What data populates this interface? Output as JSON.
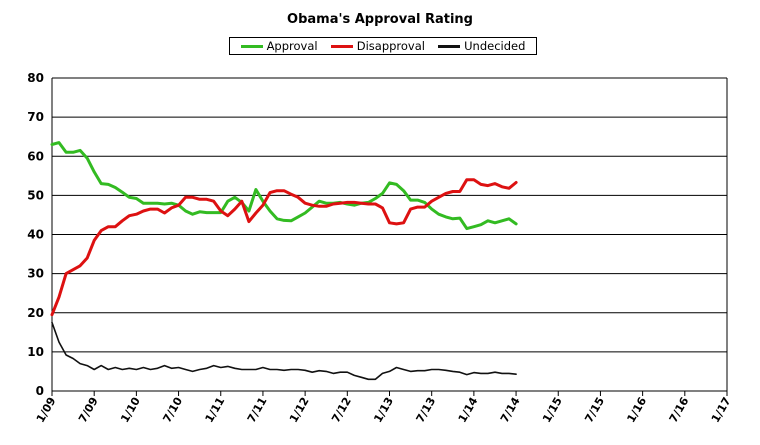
{
  "chart_data": {
    "type": "line",
    "title": "Obama's Approval Rating",
    "xlabel": "",
    "ylabel": "",
    "ylim": [
      0,
      80
    ],
    "yticks": [
      0,
      10,
      20,
      30,
      40,
      50,
      60,
      70,
      80
    ],
    "x_tick_labels": [
      "1/09",
      "7/09",
      "1/10",
      "7/10",
      "1/11",
      "7/11",
      "1/12",
      "7/12",
      "1/13",
      "7/13",
      "1/14",
      "7/14",
      "1/15",
      "7/15",
      "1/16",
      "7/16",
      "1/17"
    ],
    "x_unit": "months since 1/09",
    "xlim": [
      0,
      96
    ],
    "grid": "horizontal",
    "legend_position": "top-center",
    "series": [
      {
        "name": "Approval",
        "color": "#33bb22",
        "points": [
          [
            0,
            63
          ],
          [
            1,
            63.5
          ],
          [
            2,
            61
          ],
          [
            3,
            61
          ],
          [
            4,
            61.5
          ],
          [
            5,
            59.5
          ],
          [
            6,
            56
          ],
          [
            7,
            53
          ],
          [
            8,
            52.8
          ],
          [
            9,
            52
          ],
          [
            10,
            50.8
          ],
          [
            11,
            49.5
          ],
          [
            12,
            49.2
          ],
          [
            13,
            48
          ],
          [
            14,
            48
          ],
          [
            15,
            48
          ],
          [
            16,
            47.8
          ],
          [
            17,
            48
          ],
          [
            18,
            47.5
          ],
          [
            19,
            46
          ],
          [
            20,
            45.2
          ],
          [
            21,
            45.8
          ],
          [
            22,
            45.6
          ],
          [
            23,
            45.6
          ],
          [
            24,
            45.6
          ],
          [
            25,
            48.5
          ],
          [
            26,
            49.5
          ],
          [
            27,
            48.2
          ],
          [
            28,
            46
          ],
          [
            29,
            51.5
          ],
          [
            30,
            48.5
          ],
          [
            31,
            46
          ],
          [
            32,
            44
          ],
          [
            33,
            43.6
          ],
          [
            34,
            43.5
          ],
          [
            35,
            44.5
          ],
          [
            36,
            45.5
          ],
          [
            37,
            47
          ],
          [
            38,
            48.5
          ],
          [
            39,
            48
          ],
          [
            40,
            48
          ],
          [
            41,
            48.2
          ],
          [
            42,
            47.8
          ],
          [
            43,
            47.5
          ],
          [
            44,
            48
          ],
          [
            45,
            48.2
          ],
          [
            46,
            49.2
          ],
          [
            47,
            50.5
          ],
          [
            48,
            53.2
          ],
          [
            49,
            52.8
          ],
          [
            50,
            51.2
          ],
          [
            51,
            48.8
          ],
          [
            52,
            48.8
          ],
          [
            53,
            48.2
          ],
          [
            54,
            46.5
          ],
          [
            55,
            45.2
          ],
          [
            56,
            44.5
          ],
          [
            57,
            44
          ],
          [
            58,
            44.2
          ],
          [
            59,
            41.5
          ],
          [
            60,
            42
          ],
          [
            61,
            42.5
          ],
          [
            62,
            43.5
          ],
          [
            63,
            43
          ],
          [
            64,
            43.5
          ],
          [
            65,
            44
          ],
          [
            66,
            42.7
          ]
        ]
      },
      {
        "name": "Disapproval",
        "color": "#dd1111",
        "points": [
          [
            0,
            19.5
          ],
          [
            1,
            24
          ],
          [
            2,
            30
          ],
          [
            3,
            31
          ],
          [
            4,
            32
          ],
          [
            5,
            34
          ],
          [
            6,
            38.5
          ],
          [
            7,
            41
          ],
          [
            8,
            42
          ],
          [
            9,
            42
          ],
          [
            10,
            43.5
          ],
          [
            11,
            44.8
          ],
          [
            12,
            45.2
          ],
          [
            13,
            46
          ],
          [
            14,
            46.5
          ],
          [
            15,
            46.5
          ],
          [
            16,
            45.5
          ],
          [
            17,
            46.8
          ],
          [
            18,
            47.5
          ],
          [
            19,
            49.5
          ],
          [
            20,
            49.5
          ],
          [
            21,
            49
          ],
          [
            22,
            49
          ],
          [
            23,
            48.5
          ],
          [
            24,
            46
          ],
          [
            25,
            44.8
          ],
          [
            26,
            46.5
          ],
          [
            27,
            48.5
          ],
          [
            28,
            43.3
          ],
          [
            29,
            45.5
          ],
          [
            30,
            47.5
          ],
          [
            31,
            50.7
          ],
          [
            32,
            51.2
          ],
          [
            33,
            51.2
          ],
          [
            34,
            50.3
          ],
          [
            35,
            49.5
          ],
          [
            36,
            48
          ],
          [
            37,
            47.5
          ],
          [
            38,
            47.2
          ],
          [
            39,
            47.2
          ],
          [
            40,
            47.8
          ],
          [
            41,
            48
          ],
          [
            42,
            48.2
          ],
          [
            43,
            48.2
          ],
          [
            44,
            48
          ],
          [
            45,
            47.8
          ],
          [
            46,
            47.8
          ],
          [
            47,
            46.8
          ],
          [
            48,
            43
          ],
          [
            49,
            42.7
          ],
          [
            50,
            43
          ],
          [
            51,
            46.5
          ],
          [
            52,
            47
          ],
          [
            53,
            47
          ],
          [
            54,
            48.5
          ],
          [
            55,
            49.5
          ],
          [
            56,
            50.5
          ],
          [
            57,
            51
          ],
          [
            58,
            51
          ],
          [
            59,
            54
          ],
          [
            60,
            54
          ],
          [
            61,
            52.8
          ],
          [
            62,
            52.5
          ],
          [
            63,
            53
          ],
          [
            64,
            52.2
          ],
          [
            65,
            51.8
          ],
          [
            66,
            53.3
          ]
        ]
      },
      {
        "name": "Undecided",
        "color": "#111111",
        "points": [
          [
            0,
            17.5
          ],
          [
            1,
            12.5
          ],
          [
            2,
            9.2
          ],
          [
            3,
            8.3
          ],
          [
            4,
            7
          ],
          [
            5,
            6.5
          ],
          [
            6,
            5.5
          ],
          [
            7,
            6.5
          ],
          [
            8,
            5.5
          ],
          [
            9,
            6
          ],
          [
            10,
            5.5
          ],
          [
            11,
            5.8
          ],
          [
            12,
            5.5
          ],
          [
            13,
            6
          ],
          [
            14,
            5.5
          ],
          [
            15,
            5.8
          ],
          [
            16,
            6.5
          ],
          [
            17,
            5.8
          ],
          [
            18,
            6
          ],
          [
            19,
            5.5
          ],
          [
            20,
            5
          ],
          [
            21,
            5.5
          ],
          [
            22,
            5.8
          ],
          [
            23,
            6.5
          ],
          [
            24,
            6
          ],
          [
            25,
            6.3
          ],
          [
            26,
            5.8
          ],
          [
            27,
            5.5
          ],
          [
            28,
            5.5
          ],
          [
            29,
            5.5
          ],
          [
            30,
            6
          ],
          [
            31,
            5.5
          ],
          [
            32,
            5.5
          ],
          [
            33,
            5.3
          ],
          [
            34,
            5.5
          ],
          [
            35,
            5.5
          ],
          [
            36,
            5.3
          ],
          [
            37,
            4.8
          ],
          [
            38,
            5.2
          ],
          [
            39,
            5
          ],
          [
            40,
            4.5
          ],
          [
            41,
            4.8
          ],
          [
            42,
            4.8
          ],
          [
            43,
            4
          ],
          [
            44,
            3.5
          ],
          [
            45,
            3
          ],
          [
            46,
            3
          ],
          [
            47,
            4.5
          ],
          [
            48,
            5
          ],
          [
            49,
            6
          ],
          [
            50,
            5.5
          ],
          [
            51,
            5
          ],
          [
            52,
            5.2
          ],
          [
            53,
            5.2
          ],
          [
            54,
            5.5
          ],
          [
            55,
            5.5
          ],
          [
            56,
            5.3
          ],
          [
            57,
            5
          ],
          [
            58,
            4.8
          ],
          [
            59,
            4.2
          ],
          [
            60,
            4.7
          ],
          [
            61,
            4.5
          ],
          [
            62,
            4.5
          ],
          [
            63,
            4.8
          ],
          [
            64,
            4.5
          ],
          [
            65,
            4.5
          ],
          [
            66,
            4.3
          ]
        ]
      }
    ]
  }
}
